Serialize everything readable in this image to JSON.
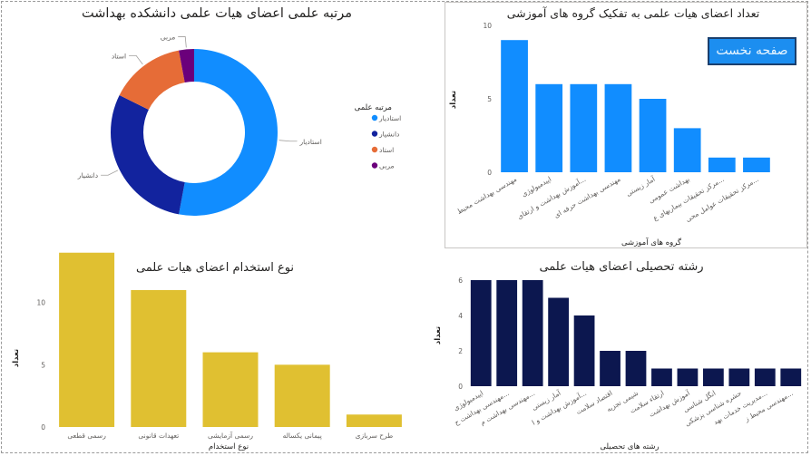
{
  "charts": {
    "donut": {
      "chart_data": {
        "type": "pie",
        "variant": "donut",
        "title": "مرتبه علمی اعضای هیات علمی دانشکده بهداشت",
        "legend_title": "مرتبه علمی",
        "legend_position": "right",
        "categories": [
          "استادیار",
          "دانشیار",
          "استاد",
          "مربی"
        ],
        "values": [
          18,
          10,
          5,
          1
        ],
        "colors": [
          "#118dff",
          "#12239e",
          "#e66c37",
          "#6b007b"
        ]
      }
    },
    "groups": {
      "chart_data": {
        "type": "bar",
        "title": "تعداد اعضای هیات علمی به تفکیک گروه های آموزشی",
        "xlabel": "گروه های آموزشی",
        "ylabel": "تعداد",
        "ylim": [
          0,
          10
        ],
        "yticks": [
          0,
          5,
          10
        ],
        "grid": false,
        "categories": [
          "مهندسی بهداشت محیط",
          "اپیدمیولوژی",
          "آموزش بهداشت و ارتقای...",
          "مهندسی بهداشت حرفه ای",
          "آمار زیستی",
          "بهداشت عمومی",
          "مرکز تحقیقات بیماریهای ع...",
          "مرکز تحقیقات عوامل محی..."
        ],
        "values": [
          9,
          6,
          6,
          6,
          5,
          3,
          1,
          1
        ],
        "color": "#118dff"
      }
    },
    "employment": {
      "chart_data": {
        "type": "bar",
        "title": "نوع استخدام اعضای هیات علمی",
        "xlabel": "نوع استخدام",
        "ylabel": "تعداد",
        "ylim": [
          0,
          15
        ],
        "yticks": [
          0,
          5,
          10
        ],
        "grid": false,
        "categories": [
          "رسمی قطعی",
          "تعهدات قانونی",
          "رسمی آزمایشی",
          "پیمانی یکساله",
          "طرح سربازی"
        ],
        "values": [
          14,
          11,
          6,
          5,
          1
        ],
        "color": "#e0c031"
      }
    },
    "fields": {
      "chart_data": {
        "type": "bar",
        "title": "رشته تحصیلی اعضای هیات علمی",
        "xlabel": "رشته های تحصیلی",
        "ylabel": "تعداد",
        "ylim": [
          0,
          6
        ],
        "yticks": [
          0,
          2,
          4,
          6
        ],
        "grid": false,
        "categories": [
          "اپیدمیولوژی",
          "مهندسی بهداشت ح...",
          "مهندسی بهداشت م...",
          "آمار زیستی",
          "آموزش بهداشت و ا...",
          "اقتصاد سلامت",
          "شیمی تجزیه",
          "ارتقاء سلامت",
          "آموزش بهداشت",
          "انگل شناسی",
          "حشره شناسی پزشکی",
          "مدیریت خدمات بهد...",
          "مهندسی محیط ز..."
        ],
        "values": [
          6,
          6,
          6,
          5,
          4,
          2,
          2,
          1,
          1,
          1,
          1,
          1,
          1
        ],
        "color": "#0c174f"
      }
    }
  },
  "home_button": {
    "label": "صفحه نخست"
  }
}
